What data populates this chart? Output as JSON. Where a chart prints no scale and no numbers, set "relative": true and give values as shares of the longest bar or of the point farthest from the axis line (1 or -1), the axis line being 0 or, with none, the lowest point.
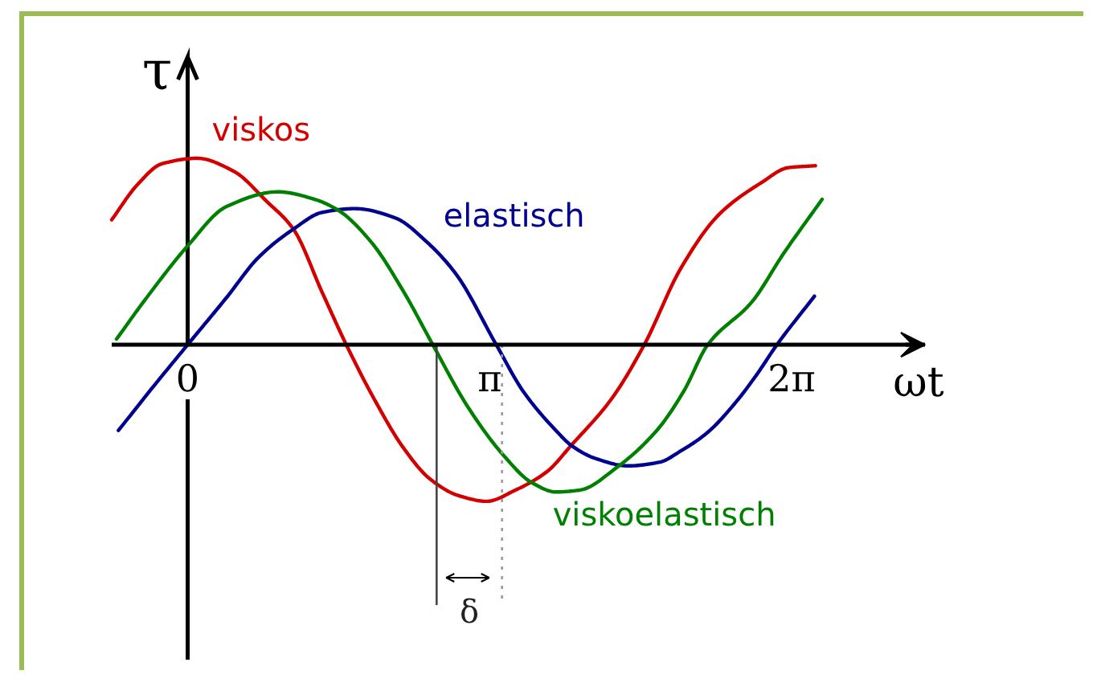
{
  "chart_data": {
    "type": "line",
    "relative": true,
    "xlabel": "ωt",
    "ylabel": "τ",
    "xlim": [
      -0.79,
      7.67
    ],
    "xticks": [
      0,
      {
        "value": 3.1416,
        "label": "π"
      },
      {
        "value": 6.2832,
        "label": "2π"
      }
    ],
    "series": [
      {
        "name": "viskos",
        "color": "#d40000",
        "x": [
          -0.79,
          -0.52,
          -0.27,
          0.1,
          0.48,
          0.82,
          1.1,
          1.4,
          1.65,
          1.96,
          2.24,
          2.52,
          2.82,
          3.11,
          3.41,
          3.74,
          3.99,
          4.41,
          4.75,
          5.13,
          5.53,
          5.97,
          6.25,
          6.53
        ],
        "values": [
          0.67,
          0.86,
          0.97,
          1.0,
          0.93,
          0.77,
          0.62,
          0.28,
          0,
          -0.31,
          -0.55,
          -0.72,
          -0.81,
          -0.84,
          -0.78,
          -0.68,
          -0.54,
          -0.29,
          0,
          0.41,
          0.7,
          0.87,
          0.95,
          0.96
        ]
      },
      {
        "name": "elastisch",
        "color": "#000090",
        "x": [
          -0.72,
          -0.35,
          0,
          0.4,
          0.74,
          1.1,
          1.4,
          1.74,
          2.16,
          2.49,
          2.79,
          3.21,
          3.49,
          3.83,
          3.99,
          4.24,
          4.58,
          4.91,
          5.13,
          5.41,
          5.7,
          5.92,
          6.13,
          6.52
        ],
        "values": [
          -0.46,
          -0.22,
          0,
          0.25,
          0.47,
          0.62,
          0.71,
          0.73,
          0.68,
          0.55,
          0.38,
          0,
          -0.25,
          -0.46,
          -0.54,
          -0.61,
          -0.65,
          -0.63,
          -0.57,
          -0.47,
          -0.31,
          -0.16,
          0,
          0.26
        ]
      },
      {
        "name": "viskoelastisch",
        "color": "#008000",
        "x": [
          -0.74,
          -0.43,
          0,
          0.4,
          0.94,
          1.32,
          1.57,
          1.91,
          2.24,
          2.55,
          2.91,
          3.28,
          3.58,
          3.83,
          4.08,
          4.46,
          4.88,
          5.16,
          5.41,
          5.87,
          6.2,
          6.6
        ],
        "values": [
          0.03,
          0.25,
          0.53,
          0.74,
          0.82,
          0.78,
          0.72,
          0.55,
          0.29,
          0,
          -0.33,
          -0.59,
          -0.74,
          -0.79,
          -0.78,
          -0.66,
          -0.46,
          -0.25,
          0,
          0.23,
          0.49,
          0.78
        ]
      }
    ],
    "ref_lines": [
      {
        "axis": "x",
        "value": 2.59,
        "color": "#444444",
        "line_style": "solid"
      },
      {
        "axis": "x",
        "value": 3.27,
        "color": "#999999",
        "line_style": "dotted"
      }
    ],
    "annotations": [
      "δ"
    ]
  }
}
